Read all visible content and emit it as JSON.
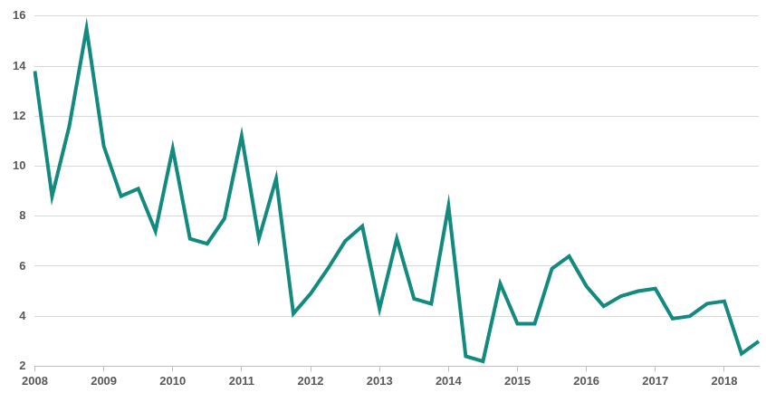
{
  "chart_data": {
    "type": "line",
    "categories": [
      "2008",
      null,
      null,
      null,
      "2009",
      null,
      null,
      null,
      "2010",
      null,
      null,
      null,
      "2011",
      null,
      null,
      null,
      "2012",
      null,
      null,
      null,
      "2013",
      null,
      null,
      null,
      "2014",
      null,
      null,
      null,
      "2015",
      null,
      null,
      null,
      "2016",
      null,
      null,
      null,
      "2017",
      null,
      null,
      null,
      "2018",
      null,
      null
    ],
    "values": [
      13.8,
      8.8,
      11.6,
      15.5,
      10.8,
      8.8,
      9.1,
      7.4,
      10.7,
      7.1,
      6.9,
      7.9,
      11.2,
      7.1,
      9.5,
      4.1,
      4.9,
      5.9,
      7.0,
      7.6,
      4.3,
      7.1,
      4.7,
      4.5,
      8.4,
      2.4,
      2.2,
      5.3,
      3.7,
      3.7,
      5.9,
      6.4,
      5.2,
      4.4,
      4.8,
      5.0,
      5.1,
      3.9,
      4.0,
      4.5,
      4.6,
      2.5,
      3.0
    ],
    "color": "#138a7e",
    "ylim": [
      2,
      16
    ],
    "yticks": [
      2,
      4,
      6,
      8,
      10,
      12,
      14,
      16
    ],
    "grid": true
  }
}
